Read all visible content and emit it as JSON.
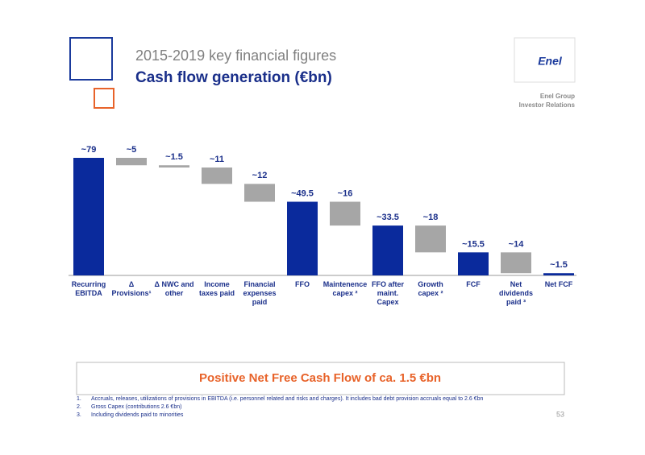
{
  "header": {
    "title": "2015-2019 key financial figures",
    "subtitle": "Cash flow generation (€bn)",
    "logo": "Enel",
    "company": "Enel Group",
    "department": "Investor Relations"
  },
  "chart_data": {
    "type": "waterfall",
    "categories": [
      "Recurring EBITDA",
      "Δ Provisions¹",
      "Δ NWC and other",
      "Income taxes paid",
      "Financial expenses paid",
      "FFO",
      "Maintenence capex ²",
      "FFO after maint. Capex",
      "Growth capex ²",
      "FCF",
      "Net dividends paid ³",
      "Net FCF"
    ],
    "values": [
      79,
      5,
      1.5,
      11,
      12,
      49.5,
      16,
      33.5,
      18,
      15.5,
      14,
      1.5
    ],
    "value_labels": [
      "~79",
      "~5",
      "~1.5",
      "~11",
      "~12",
      "~49.5",
      "~16",
      "~33.5",
      "~18",
      "~15.5",
      "~14",
      "~1.5"
    ],
    "measures": [
      "total",
      "decrease",
      "decrease",
      "decrease",
      "decrease",
      "total",
      "decrease",
      "total",
      "decrease",
      "total",
      "decrease",
      "total"
    ],
    "colors": {
      "total": "#0a2a9c",
      "decrease": "#a6a6a6"
    }
  },
  "callout": "Positive Net Free Cash Flow of ca. 1.5 €bn",
  "footnotes": [
    {
      "number": "1.",
      "text": "Accruals, releases, utilizations of provisions in EBITDA (i.e. personnel related and risks and charges). It includes bad debt provision accruals equal to 2.6 €bn"
    },
    {
      "number": "2.",
      "text": "Gross Capex (contributions 2.6 €bn)"
    },
    {
      "number": "3.",
      "text": "Including dividends paid to minorities"
    }
  ],
  "page_number": "53"
}
